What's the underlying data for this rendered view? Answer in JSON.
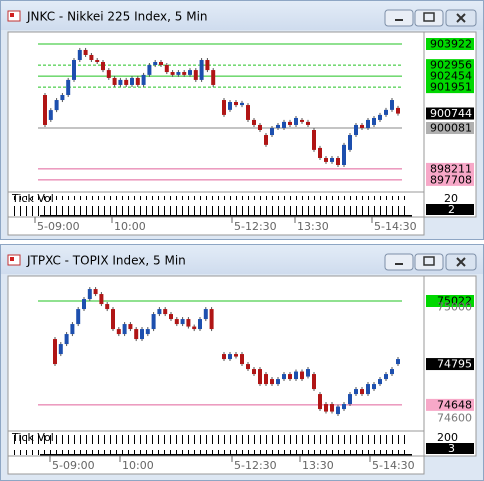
{
  "windows": [
    {
      "title": "JNKC - Nikkei 225 Index, 5 Min",
      "price_range": [
        897155,
        904471
      ],
      "levels": [
        {
          "value": 903922,
          "kind": "green"
        },
        {
          "value": 902956,
          "kind": "green-dashed"
        },
        {
          "value": 902454,
          "kind": "green"
        },
        {
          "value": 901951,
          "kind": "green-dashed"
        },
        {
          "value": 900744,
          "kind": "black"
        },
        {
          "value": 900081,
          "kind": "gray"
        },
        {
          "value": 898211,
          "kind": "pink"
        },
        {
          "value": 897708,
          "kind": "pink"
        }
      ],
      "volume_label": "Tick Vol",
      "volume_scale": 20,
      "volume_last": 2,
      "time_labels": [
        "5-09:00",
        "10:00",
        "5-12:30",
        "13:30",
        "5-14:30"
      ],
      "candles": {
        "morning": [
          [
            901590,
            900220
          ],
          [
            900450,
            900900
          ],
          [
            900900,
            901360
          ],
          [
            901360,
            901590
          ],
          [
            901590,
            902280
          ],
          [
            902280,
            903190
          ],
          [
            903190,
            903650
          ],
          [
            903650,
            903420
          ],
          [
            903420,
            903190
          ],
          [
            903190,
            903100
          ],
          [
            903100,
            902730
          ],
          [
            902730,
            902370
          ],
          [
            902370,
            902050
          ],
          [
            902050,
            902280
          ],
          [
            902280,
            902050
          ],
          [
            902050,
            902370
          ],
          [
            902370,
            902050
          ],
          [
            902050,
            902510
          ],
          [
            902510,
            902960
          ],
          [
            902960,
            903100
          ],
          [
            903100,
            902960
          ],
          [
            902960,
            902640
          ],
          [
            902640,
            902510
          ],
          [
            902510,
            902640
          ],
          [
            902640,
            902510
          ],
          [
            902510,
            902730
          ],
          [
            902730,
            902280
          ],
          [
            902280,
            903190
          ],
          [
            903190,
            902730
          ],
          [
            902730,
            902050
          ]
        ],
        "afternoon": [
          [
            901360,
            900680
          ],
          [
            900910,
            901270
          ],
          [
            901270,
            901130
          ],
          [
            901130,
            901230
          ],
          [
            901130,
            900450
          ],
          [
            900450,
            900220
          ],
          [
            900220,
            899990
          ],
          [
            899760,
            899310
          ],
          [
            899760,
            900080
          ],
          [
            900080,
            900220
          ],
          [
            900080,
            900360
          ],
          [
            900360,
            900220
          ],
          [
            900220,
            900540
          ],
          [
            900450,
            900360
          ],
          [
            900360,
            900220
          ],
          [
            899990,
            899080
          ],
          [
            899170,
            898710
          ],
          [
            898710,
            898530
          ],
          [
            898530,
            898710
          ],
          [
            898710,
            898390
          ],
          [
            898390,
            899310
          ],
          [
            899080,
            899760
          ],
          [
            899760,
            900220
          ],
          [
            900220,
            900080
          ],
          [
            900080,
            900450
          ],
          [
            900220,
            900540
          ],
          [
            900450,
            900680
          ],
          [
            900680,
            900910
          ],
          [
            900910,
            901360
          ],
          [
            901000,
            900740
          ]
        ]
      }
    },
    {
      "title": "JTPXC - TOPIX Index, 5 Min",
      "price_range": [
        74554,
        75112
      ],
      "levels": [
        {
          "value": 75022,
          "kind": "green"
        },
        {
          "value": 75000,
          "kind": "plain"
        },
        {
          "value": 74795,
          "kind": "black"
        },
        {
          "value": 74648,
          "kind": "pink"
        },
        {
          "value": 74600,
          "kind": "plain"
        }
      ],
      "volume_label": "Tick Vol",
      "volume_scale": 200,
      "volume_last": 3,
      "time_labels": [
        "5-09:00",
        "10:00",
        "5-12:30",
        "13:30",
        "5-14:30"
      ],
      "candles": {
        "morning": [
          [
            74885,
            74795
          ],
          [
            74831,
            74867
          ],
          [
            74867,
            74903
          ],
          [
            74903,
            74939
          ],
          [
            74939,
            74993
          ],
          [
            74993,
            75029
          ],
          [
            75029,
            75065
          ],
          [
            75065,
            75047
          ],
          [
            75047,
            75011
          ],
          [
            75011,
            74993
          ],
          [
            74993,
            74921
          ],
          [
            74921,
            74903
          ],
          [
            74903,
            74939
          ],
          [
            74939,
            74921
          ],
          [
            74921,
            74885
          ],
          [
            74885,
            74921
          ],
          [
            74903,
            74921
          ],
          [
            74921,
            74975
          ],
          [
            74975,
            74993
          ],
          [
            74993,
            74975
          ],
          [
            74975,
            74957
          ],
          [
            74957,
            74939
          ],
          [
            74939,
            74957
          ],
          [
            74957,
            74930
          ],
          [
            74930,
            74921
          ],
          [
            74921,
            74957
          ],
          [
            74957,
            74993
          ],
          [
            74993,
            74921
          ]
        ],
        "afternoon": [
          [
            74831,
            74813
          ],
          [
            74813,
            74831
          ],
          [
            74831,
            74822
          ],
          [
            74831,
            74795
          ],
          [
            74795,
            74777
          ],
          [
            74777,
            74759
          ],
          [
            74777,
            74723
          ],
          [
            74759,
            74723
          ],
          [
            74741,
            74723
          ],
          [
            74723,
            74741
          ],
          [
            74741,
            74759
          ],
          [
            74759,
            74741
          ],
          [
            74741,
            74768
          ],
          [
            74768,
            74741
          ],
          [
            74750,
            74777
          ],
          [
            74759,
            74705
          ],
          [
            74687,
            74633
          ],
          [
            74651,
            74624
          ],
          [
            74651,
            74624
          ],
          [
            74615,
            74642
          ],
          [
            74633,
            74651
          ],
          [
            74651,
            74687
          ],
          [
            74687,
            74705
          ],
          [
            74705,
            74687
          ],
          [
            74687,
            74723
          ],
          [
            74705,
            74723
          ],
          [
            74723,
            74741
          ],
          [
            74741,
            74759
          ],
          [
            74759,
            74777
          ],
          [
            74795,
            74813
          ]
        ]
      }
    }
  ]
}
